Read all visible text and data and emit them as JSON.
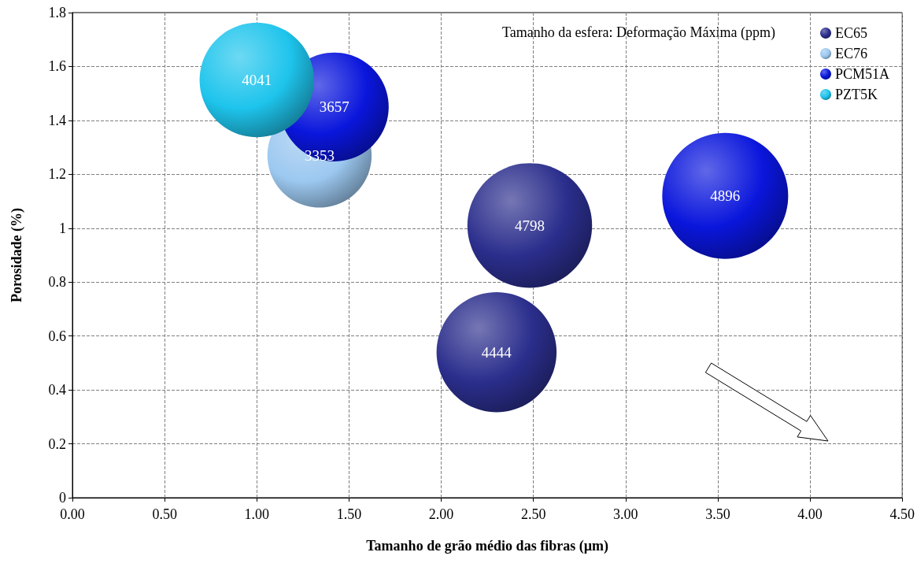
{
  "chart_data": {
    "type": "bubble",
    "xlabel": "Tamanho de grão médio das fibras (µm)",
    "ylabel": "Porosidade (%)",
    "annotations": [
      "Tamanho da esfera: Deformação Máxima (ppm)"
    ],
    "xlim": [
      0,
      4.5
    ],
    "xticks": [
      {
        "value": 0,
        "label": "0.00"
      },
      {
        "value": 0.5,
        "label": "0.50"
      },
      {
        "value": 1,
        "label": "1.00"
      },
      {
        "value": 1.5,
        "label": "1.50"
      },
      {
        "value": 2,
        "label": "2.00"
      },
      {
        "value": 2.5,
        "label": "2.50"
      },
      {
        "value": 3,
        "label": "3.00"
      },
      {
        "value": 3.5,
        "label": "3.50"
      },
      {
        "value": 4,
        "label": "4.00"
      },
      {
        "value": 4.5,
        "label": "4.50"
      }
    ],
    "ylim": [
      0,
      1.8
    ],
    "yticks": [
      0,
      0.2,
      0.4,
      0.6,
      0.8,
      1,
      1.2,
      1.4,
      1.6,
      1.8
    ],
    "grid": true,
    "legend": "top right",
    "marker": "circle",
    "series": [
      {
        "name": "EC65",
        "color": "#2b2e8c",
        "x": [
          2.48,
          2.3
        ],
        "values": [
          1.01,
          0.54
        ],
        "sizes": [
          4798,
          4444
        ],
        "value_labels": [
          "4798",
          "4444"
        ]
      },
      {
        "name": "EC76",
        "color": "#9cc8f0",
        "x": [
          1.34
        ],
        "values": [
          1.27
        ],
        "sizes": [
          3353
        ],
        "value_labels": [
          "3353"
        ]
      },
      {
        "name": "PCM51A",
        "color": "#0a16dc",
        "x": [
          1.42,
          3.54
        ],
        "values": [
          1.45,
          1.12
        ],
        "sizes": [
          3657,
          4896
        ],
        "value_labels": [
          "3657",
          "4896"
        ]
      },
      {
        "name": "PZT5K",
        "color": "#1ec4ec",
        "x": [
          1.0
        ],
        "values": [
          1.55
        ],
        "sizes": [
          4041
        ],
        "value_labels": [
          "4041"
        ]
      }
    ]
  }
}
